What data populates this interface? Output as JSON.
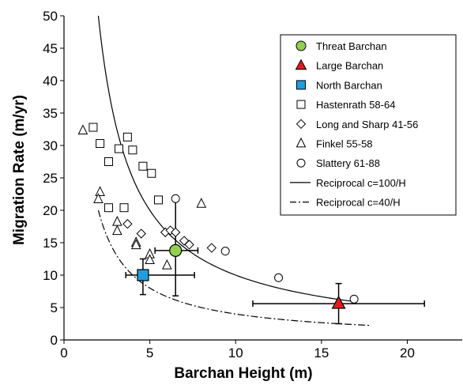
{
  "chart_data": {
    "type": "scatter",
    "xlabel": "Barchan Height (m)",
    "ylabel": "Migration Rate (m/yr)",
    "xlim": [
      0,
      23.2
    ],
    "ylim": [
      0,
      50
    ],
    "xticks": [
      0,
      5,
      10,
      15,
      20
    ],
    "yticks": [
      0,
      5,
      10,
      15,
      20,
      25,
      30,
      35,
      40,
      45,
      50
    ],
    "grid": false,
    "legend_position": "top-right",
    "series": [
      {
        "name": "Threat Barchan",
        "marker": "circle",
        "fill": "#92d050",
        "stroke": "#000000",
        "size": "large",
        "points": [
          {
            "x": 6.5,
            "y": 13.8,
            "xerr": [
              5.3,
              7.8
            ],
            "yerr": [
              6.8,
              21.6
            ]
          }
        ]
      },
      {
        "name": "Large Barchan",
        "marker": "triangle",
        "fill": "#e31a1c",
        "stroke": "#000000",
        "size": "large",
        "points": [
          {
            "x": 16.0,
            "y": 5.6,
            "xerr": [
              11.0,
              21.0
            ],
            "yerr": [
              2.5,
              8.7
            ]
          }
        ]
      },
      {
        "name": "North Barchan",
        "marker": "square",
        "fill": "#1f9de0",
        "stroke": "#000000",
        "size": "large",
        "points": [
          {
            "x": 4.6,
            "y": 10.0,
            "xerr": [
              3.6,
              7.6
            ],
            "yerr": [
              7.0,
              12.5
            ]
          }
        ]
      },
      {
        "name": "Hastenrath 58-64",
        "marker": "square",
        "fill": "#ffffff",
        "stroke": "#000000",
        "size": "small",
        "points": [
          {
            "x": 1.7,
            "y": 32.8
          },
          {
            "x": 2.1,
            "y": 30.3
          },
          {
            "x": 3.2,
            "y": 29.5
          },
          {
            "x": 3.7,
            "y": 31.3
          },
          {
            "x": 4.0,
            "y": 29.3
          },
          {
            "x": 2.6,
            "y": 27.5
          },
          {
            "x": 4.6,
            "y": 26.8
          },
          {
            "x": 5.1,
            "y": 25.7
          },
          {
            "x": 5.5,
            "y": 21.6
          },
          {
            "x": 2.6,
            "y": 20.4
          },
          {
            "x": 3.5,
            "y": 20.4
          }
        ]
      },
      {
        "name": "Long and Sharp 41-56",
        "marker": "diamond",
        "fill": "#ffffff",
        "stroke": "#000000",
        "size": "small",
        "points": [
          {
            "x": 4.5,
            "y": 16.4
          },
          {
            "x": 3.7,
            "y": 17.9
          },
          {
            "x": 5.9,
            "y": 16.6
          },
          {
            "x": 6.2,
            "y": 16.9
          },
          {
            "x": 6.5,
            "y": 16.6
          },
          {
            "x": 7.0,
            "y": 15.3
          },
          {
            "x": 7.3,
            "y": 14.7
          },
          {
            "x": 8.6,
            "y": 14.2
          }
        ]
      },
      {
        "name": "Finkel 55-58",
        "marker": "triangle",
        "fill": "#ffffff",
        "stroke": "#000000",
        "size": "small",
        "points": [
          {
            "x": 1.1,
            "y": 32.3
          },
          {
            "x": 2.1,
            "y": 22.8
          },
          {
            "x": 2.0,
            "y": 21.7
          },
          {
            "x": 3.1,
            "y": 18.2
          },
          {
            "x": 3.1,
            "y": 16.8
          },
          {
            "x": 4.2,
            "y": 15.0
          },
          {
            "x": 4.2,
            "y": 14.6
          },
          {
            "x": 5.0,
            "y": 13.2
          },
          {
            "x": 5.0,
            "y": 12.3
          },
          {
            "x": 6.0,
            "y": 11.5
          },
          {
            "x": 8.0,
            "y": 21.0
          }
        ]
      },
      {
        "name": "Slattery 61-88",
        "marker": "circle",
        "fill": "#ffffff",
        "stroke": "#000000",
        "size": "small",
        "points": [
          {
            "x": 6.5,
            "y": 21.8
          },
          {
            "x": 9.4,
            "y": 13.7
          },
          {
            "x": 12.5,
            "y": 9.6
          },
          {
            "x": 16.9,
            "y": 6.3
          }
        ]
      },
      {
        "name": "Reciprocal c=100/H",
        "kind": "curve",
        "c": 100,
        "dash": "solid",
        "x_range": [
          2.0,
          17.0
        ]
      },
      {
        "name": "Reciprocal c=40/H",
        "kind": "curve",
        "c": 40,
        "dash": "dashdot",
        "x_range": [
          2.0,
          17.8
        ]
      }
    ]
  }
}
